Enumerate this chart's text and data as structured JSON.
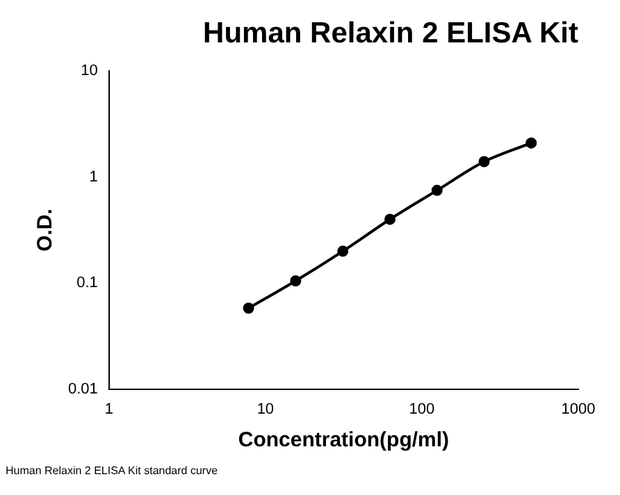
{
  "chart_data": {
    "type": "line",
    "title": "Human Relaxin 2 ELISA Kit",
    "xlabel": "Concentration(pg/ml)",
    "ylabel": "O.D.",
    "annotations": [
      "Human Relaxin 2 ELISA Kit standard curve"
    ],
    "x": [
      7.8,
      15.6,
      31.25,
      62.5,
      125,
      250,
      500
    ],
    "series": [
      {
        "color": "#000000",
        "values": [
          0.058,
          0.105,
          0.2,
          0.4,
          0.75,
          1.4,
          2.1
        ]
      }
    ],
    "log": "xy",
    "xlim": [
      1,
      1000
    ],
    "xticks": [
      1,
      10,
      100,
      1000
    ],
    "ylim": [
      0.01,
      10
    ],
    "yticks": [
      0.01,
      0.1,
      1,
      10
    ],
    "grid": false,
    "legend": false,
    "marker": "circle",
    "line_style": "solid"
  }
}
